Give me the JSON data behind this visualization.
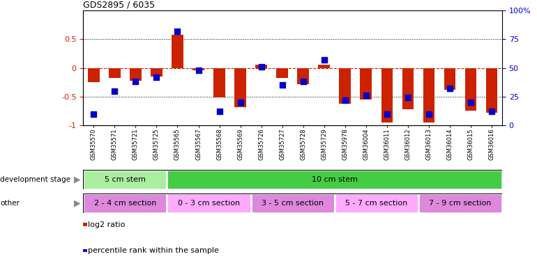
{
  "title": "GDS2895 / 6035",
  "samples": [
    "GSM35570",
    "GSM35571",
    "GSM35721",
    "GSM35725",
    "GSM35565",
    "GSM35567",
    "GSM35568",
    "GSM35569",
    "GSM35726",
    "GSM35727",
    "GSM35728",
    "GSM35729",
    "GSM35978",
    "GSM36004",
    "GSM36011",
    "GSM36012",
    "GSM36013",
    "GSM36014",
    "GSM36015",
    "GSM36016"
  ],
  "log2_ratio": [
    -0.25,
    -0.18,
    -0.22,
    -0.15,
    0.58,
    -0.04,
    -0.52,
    -0.68,
    0.06,
    -0.18,
    -0.28,
    0.06,
    -0.62,
    -0.55,
    -0.95,
    -0.72,
    -0.95,
    -0.38,
    -0.75,
    -0.78
  ],
  "percentile": [
    10,
    30,
    38,
    42,
    82,
    48,
    12,
    20,
    51,
    35,
    38,
    57,
    22,
    26,
    10,
    24,
    10,
    32,
    20,
    12
  ],
  "bar_color": "#cc2200",
  "dot_color": "#0000cc",
  "background_color": "#ffffff",
  "zero_line_color": "#cc2200",
  "ylim": [
    -1.0,
    1.0
  ],
  "yticks_left": [
    -1.0,
    -0.5,
    0.0,
    0.5
  ],
  "ytick_labels_left": [
    "-1",
    "-0.5",
    "0",
    "0.5"
  ],
  "yticks_right": [
    0,
    25,
    50,
    75,
    100
  ],
  "ytick_labels_right": [
    "0",
    "25",
    "50",
    "75",
    "100%"
  ],
  "dev_stage_groups": [
    {
      "label": "5 cm stem",
      "start": 0,
      "end": 4,
      "color": "#aaeea0"
    },
    {
      "label": "10 cm stem",
      "start": 4,
      "end": 20,
      "color": "#44cc44"
    }
  ],
  "other_groups": [
    {
      "label": "2 - 4 cm section",
      "start": 0,
      "end": 4,
      "color": "#dd88dd"
    },
    {
      "label": "0 - 3 cm section",
      "start": 4,
      "end": 8,
      "color": "#ffaaff"
    },
    {
      "label": "3 - 5 cm section",
      "start": 8,
      "end": 12,
      "color": "#dd88dd"
    },
    {
      "label": "5 - 7 cm section",
      "start": 12,
      "end": 16,
      "color": "#ffaaff"
    },
    {
      "label": "7 - 9 cm section",
      "start": 16,
      "end": 20,
      "color": "#dd88dd"
    }
  ],
  "dev_stage_label": "development stage",
  "other_label": "other",
  "legend_red": "log2 ratio",
  "legend_blue": "percentile rank within the sample",
  "bar_width": 0.55,
  "dot_size": 28
}
